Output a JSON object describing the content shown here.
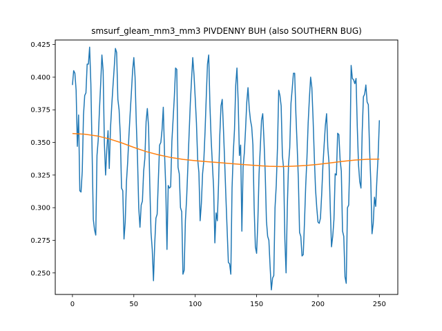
{
  "chart_data": {
    "type": "line",
    "title": "smsurf_gleam_mm3_mm3 PIVDENNY BUH (also SOUTHERN BUG)",
    "xlabel": "",
    "ylabel": "",
    "xlim": [
      -14,
      265
    ],
    "ylim": [
      0.2335,
      0.4285
    ],
    "x_ticks": [
      0,
      50,
      100,
      150,
      200,
      250
    ],
    "y_ticks": [
      0.25,
      0.275,
      0.3,
      0.325,
      0.35,
      0.375,
      0.4,
      0.425
    ],
    "y_tick_labels": [
      "0.250",
      "0.275",
      "0.300",
      "0.325",
      "0.350",
      "0.375",
      "0.400",
      "0.425"
    ],
    "grid": false,
    "legend": "none",
    "series": [
      {
        "color": "#1f77b4",
        "style": "raw",
        "points": [
          [
            0,
            0.394
          ],
          [
            1,
            0.405
          ],
          [
            2,
            0.403
          ],
          [
            3,
            0.39
          ],
          [
            4,
            0.347
          ],
          [
            5,
            0.371
          ],
          [
            6,
            0.313
          ],
          [
            7,
            0.312
          ],
          [
            8,
            0.328
          ],
          [
            9,
            0.371
          ],
          [
            10,
            0.386
          ],
          [
            11,
            0.388
          ],
          [
            12,
            0.41
          ],
          [
            13,
            0.41
          ],
          [
            14,
            0.423
          ],
          [
            15,
            0.395
          ],
          [
            16,
            0.344
          ],
          [
            17,
            0.291
          ],
          [
            18,
            0.283
          ],
          [
            19,
            0.279
          ],
          [
            20,
            0.34
          ],
          [
            21,
            0.352
          ],
          [
            22,
            0.375
          ],
          [
            23,
            0.395
          ],
          [
            24,
            0.417
          ],
          [
            25,
            0.405
          ],
          [
            26,
            0.35
          ],
          [
            27,
            0.325
          ],
          [
            28,
            0.345
          ],
          [
            29,
            0.359
          ],
          [
            30,
            0.33
          ],
          [
            31,
            0.361
          ],
          [
            32,
            0.378
          ],
          [
            33,
            0.393
          ],
          [
            34,
            0.407
          ],
          [
            35,
            0.422
          ],
          [
            36,
            0.419
          ],
          [
            37,
            0.383
          ],
          [
            38,
            0.375
          ],
          [
            39,
            0.355
          ],
          [
            40,
            0.315
          ],
          [
            41,
            0.313
          ],
          [
            42,
            0.276
          ],
          [
            43,
            0.289
          ],
          [
            44,
            0.32
          ],
          [
            45,
            0.335
          ],
          [
            46,
            0.355
          ],
          [
            47,
            0.372
          ],
          [
            48,
            0.388
          ],
          [
            49,
            0.405
          ],
          [
            50,
            0.415
          ],
          [
            51,
            0.4
          ],
          [
            52,
            0.365
          ],
          [
            53,
            0.338
          ],
          [
            54,
            0.3
          ],
          [
            55,
            0.285
          ],
          [
            56,
            0.302
          ],
          [
            57,
            0.305
          ],
          [
            58,
            0.328
          ],
          [
            59,
            0.338
          ],
          [
            60,
            0.366
          ],
          [
            61,
            0.376
          ],
          [
            62,
            0.362
          ],
          [
            63,
            0.318
          ],
          [
            64,
            0.281
          ],
          [
            65,
            0.268
          ],
          [
            66,
            0.244
          ],
          [
            67,
            0.272
          ],
          [
            68,
            0.292
          ],
          [
            69,
            0.295
          ],
          [
            70,
            0.322
          ],
          [
            71,
            0.348
          ],
          [
            72,
            0.35
          ],
          [
            73,
            0.36
          ],
          [
            74,
            0.377
          ],
          [
            75,
            0.342
          ],
          [
            76,
            0.316
          ],
          [
            77,
            0.268
          ],
          [
            78,
            0.317
          ],
          [
            79,
            0.315
          ],
          [
            80,
            0.316
          ],
          [
            81,
            0.351
          ],
          [
            82,
            0.368
          ],
          [
            83,
            0.385
          ],
          [
            84,
            0.407
          ],
          [
            85,
            0.406
          ],
          [
            86,
            0.331
          ],
          [
            87,
            0.326
          ],
          [
            88,
            0.3
          ],
          [
            89,
            0.297
          ],
          [
            90,
            0.249
          ],
          [
            91,
            0.252
          ],
          [
            92,
            0.29
          ],
          [
            93,
            0.307
          ],
          [
            94,
            0.331
          ],
          [
            95,
            0.356
          ],
          [
            96,
            0.38
          ],
          [
            97,
            0.398
          ],
          [
            98,
            0.415
          ],
          [
            99,
            0.402
          ],
          [
            100,
            0.384
          ],
          [
            101,
            0.365
          ],
          [
            102,
            0.337
          ],
          [
            103,
            0.327
          ],
          [
            104,
            0.29
          ],
          [
            105,
            0.303
          ],
          [
            106,
            0.326
          ],
          [
            107,
            0.336
          ],
          [
            108,
            0.358
          ],
          [
            109,
            0.385
          ],
          [
            110,
            0.41
          ],
          [
            111,
            0.417
          ],
          [
            112,
            0.378
          ],
          [
            113,
            0.352
          ],
          [
            114,
            0.333
          ],
          [
            115,
            0.315
          ],
          [
            116,
            0.273
          ],
          [
            117,
            0.296
          ],
          [
            118,
            0.29
          ],
          [
            119,
            0.318
          ],
          [
            120,
            0.355
          ],
          [
            121,
            0.378
          ],
          [
            122,
            0.383
          ],
          [
            123,
            0.36
          ],
          [
            124,
            0.335
          ],
          [
            125,
            0.308
          ],
          [
            126,
            0.283
          ],
          [
            127,
            0.258
          ],
          [
            128,
            0.257
          ],
          [
            129,
            0.249
          ],
          [
            130,
            0.315
          ],
          [
            131,
            0.342
          ],
          [
            132,
            0.36
          ],
          [
            133,
            0.394
          ],
          [
            134,
            0.407
          ],
          [
            135,
            0.381
          ],
          [
            136,
            0.34
          ],
          [
            137,
            0.348
          ],
          [
            138,
            0.282
          ],
          [
            139,
            0.331
          ],
          [
            140,
            0.342
          ],
          [
            141,
            0.36
          ],
          [
            142,
            0.381
          ],
          [
            143,
            0.392
          ],
          [
            144,
            0.376
          ],
          [
            145,
            0.367
          ],
          [
            146,
            0.362
          ],
          [
            147,
            0.348
          ],
          [
            148,
            0.3
          ],
          [
            149,
            0.27
          ],
          [
            150,
            0.265
          ],
          [
            151,
            0.289
          ],
          [
            152,
            0.326
          ],
          [
            153,
            0.346
          ],
          [
            154,
            0.367
          ],
          [
            155,
            0.372
          ],
          [
            156,
            0.352
          ],
          [
            157,
            0.327
          ],
          [
            158,
            0.29
          ],
          [
            159,
            0.278
          ],
          [
            160,
            0.275
          ],
          [
            161,
            0.255
          ],
          [
            162,
            0.237
          ],
          [
            163,
            0.246
          ],
          [
            164,
            0.248
          ],
          [
            165,
            0.3
          ],
          [
            166,
            0.317
          ],
          [
            167,
            0.346
          ],
          [
            168,
            0.39
          ],
          [
            169,
            0.386
          ],
          [
            170,
            0.378
          ],
          [
            171,
            0.34
          ],
          [
            172,
            0.33
          ],
          [
            173,
            0.276
          ],
          [
            174,
            0.25
          ],
          [
            175,
            0.3
          ],
          [
            176,
            0.333
          ],
          [
            177,
            0.346
          ],
          [
            178,
            0.38
          ],
          [
            179,
            0.391
          ],
          [
            180,
            0.403
          ],
          [
            181,
            0.403
          ],
          [
            182,
            0.372
          ],
          [
            183,
            0.348
          ],
          [
            184,
            0.322
          ],
          [
            185,
            0.281
          ],
          [
            186,
            0.278
          ],
          [
            187,
            0.263
          ],
          [
            188,
            0.264
          ],
          [
            189,
            0.289
          ],
          [
            190,
            0.317
          ],
          [
            191,
            0.338
          ],
          [
            192,
            0.365
          ],
          [
            193,
            0.384
          ],
          [
            194,
            0.4
          ],
          [
            195,
            0.392
          ],
          [
            196,
            0.368
          ],
          [
            197,
            0.339
          ],
          [
            198,
            0.314
          ],
          [
            199,
            0.3
          ],
          [
            200,
            0.289
          ],
          [
            201,
            0.288
          ],
          [
            202,
            0.292
          ],
          [
            203,
            0.31
          ],
          [
            204,
            0.332
          ],
          [
            205,
            0.348
          ],
          [
            206,
            0.363
          ],
          [
            207,
            0.372
          ],
          [
            208,
            0.346
          ],
          [
            209,
            0.334
          ],
          [
            210,
            0.3
          ],
          [
            211,
            0.27
          ],
          [
            212,
            0.278
          ],
          [
            213,
            0.291
          ],
          [
            214,
            0.326
          ],
          [
            215,
            0.325
          ],
          [
            216,
            0.357
          ],
          [
            217,
            0.356
          ],
          [
            218,
            0.337
          ],
          [
            219,
            0.328
          ],
          [
            220,
            0.282
          ],
          [
            221,
            0.278
          ],
          [
            222,
            0.247
          ],
          [
            223,
            0.242
          ],
          [
            224,
            0.3
          ],
          [
            225,
            0.302
          ],
          [
            226,
            0.34
          ],
          [
            227,
            0.409
          ],
          [
            228,
            0.399
          ],
          [
            229,
            0.398
          ],
          [
            230,
            0.395
          ],
          [
            231,
            0.399
          ],
          [
            232,
            0.362
          ],
          [
            233,
            0.333
          ],
          [
            234,
            0.32
          ],
          [
            235,
            0.315
          ],
          [
            236,
            0.358
          ],
          [
            237,
            0.385
          ],
          [
            238,
            0.387
          ],
          [
            239,
            0.394
          ],
          [
            240,
            0.381
          ],
          [
            241,
            0.379
          ],
          [
            242,
            0.345
          ],
          [
            243,
            0.32
          ],
          [
            244,
            0.28
          ],
          [
            245,
            0.288
          ],
          [
            246,
            0.308
          ],
          [
            247,
            0.301
          ],
          [
            248,
            0.322
          ],
          [
            249,
            0.34
          ],
          [
            250,
            0.367
          ]
        ]
      },
      {
        "color": "#ff7f0e",
        "style": "smoothed",
        "points": [
          [
            0,
            0.3568
          ],
          [
            10,
            0.3563
          ],
          [
            20,
            0.355
          ],
          [
            30,
            0.3527
          ],
          [
            40,
            0.3497
          ],
          [
            50,
            0.3462
          ],
          [
            60,
            0.343
          ],
          [
            70,
            0.3405
          ],
          [
            80,
            0.3385
          ],
          [
            90,
            0.337
          ],
          [
            100,
            0.336
          ],
          [
            110,
            0.3352
          ],
          [
            120,
            0.3345
          ],
          [
            130,
            0.3337
          ],
          [
            140,
            0.333
          ],
          [
            150,
            0.3323
          ],
          [
            160,
            0.3317
          ],
          [
            170,
            0.3315
          ],
          [
            180,
            0.3318
          ],
          [
            190,
            0.3323
          ],
          [
            200,
            0.3332
          ],
          [
            210,
            0.3343
          ],
          [
            220,
            0.3355
          ],
          [
            230,
            0.3365
          ],
          [
            240,
            0.3371
          ],
          [
            250,
            0.3372
          ]
        ]
      }
    ]
  }
}
